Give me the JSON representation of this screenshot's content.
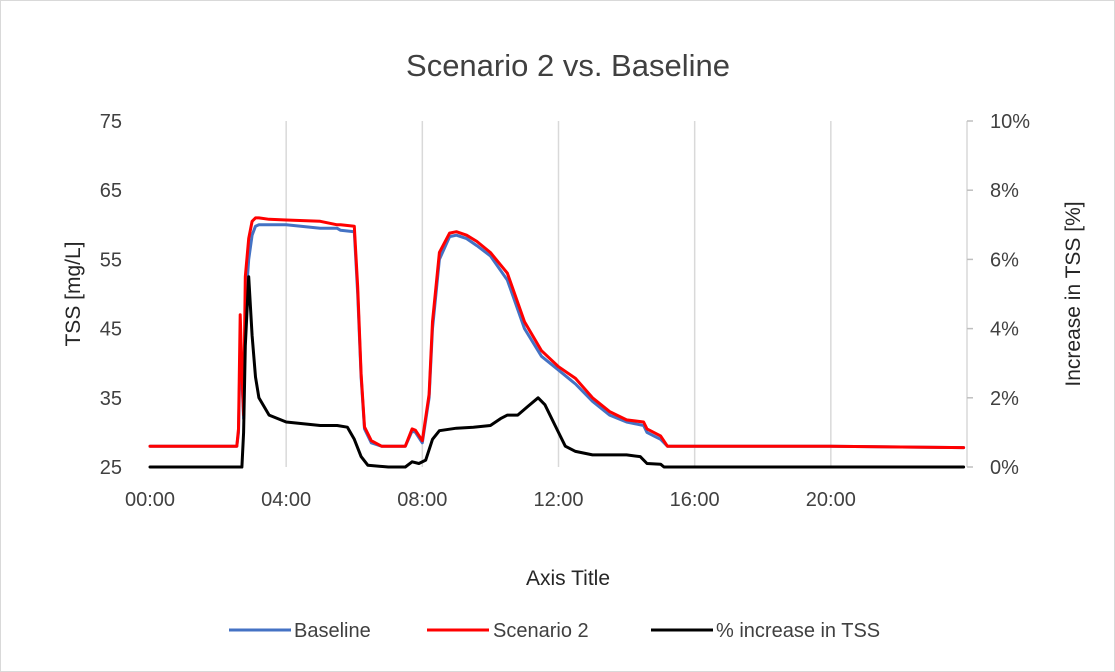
{
  "chart_data": {
    "type": "line",
    "title": "Scenario 2 vs. Baseline",
    "xlabel": "Axis Title",
    "ylabel": "TSS [mg/L]",
    "y2label": "Increase in TSS [%]",
    "x_unit": "hours",
    "xlim": [
      0,
      24
    ],
    "x_ticks": [
      0,
      4,
      8,
      12,
      16,
      20
    ],
    "x_tick_labels": [
      "00:00",
      "04:00",
      "08:00",
      "12:00",
      "16:00",
      "20:00"
    ],
    "ylim": [
      25,
      75
    ],
    "y_ticks": [
      25,
      35,
      45,
      55,
      65,
      75
    ],
    "y_tick_labels": [
      "25",
      "35",
      "45",
      "55",
      "65",
      "75"
    ],
    "y2lim": [
      0,
      10
    ],
    "y2_ticks": [
      0,
      2,
      4,
      6,
      8,
      10
    ],
    "y2_tick_labels": [
      "0%",
      "2%",
      "4%",
      "6%",
      "8%",
      "10%"
    ],
    "grid": "vertical",
    "legend_position": "bottom",
    "series": [
      {
        "name": "Baseline",
        "axis": "left",
        "color": "#4472c4",
        "x": [
          0,
          2.55,
          2.6,
          2.65,
          2.7,
          2.75,
          2.8,
          2.9,
          3.0,
          3.1,
          3.2,
          3.5,
          4.0,
          5.0,
          5.5,
          5.6,
          6.0,
          6.1,
          6.2,
          6.3,
          6.5,
          6.8,
          7.2,
          7.5,
          7.7,
          7.8,
          8.0,
          8.2,
          8.3,
          8.5,
          8.8,
          9.0,
          9.3,
          9.6,
          10.0,
          10.5,
          11.0,
          11.5,
          12.0,
          12.5,
          13.0,
          13.5,
          14.0,
          14.5,
          14.6,
          14.8,
          15.0,
          15.2,
          16.0,
          20.0,
          23.9
        ],
        "y": [
          28.0,
          28.0,
          30.0,
          42.0,
          38.0,
          32.0,
          48.0,
          55.0,
          58.5,
          59.8,
          60.0,
          60.0,
          60.0,
          59.5,
          59.5,
          59.2,
          59.0,
          50.0,
          38.0,
          30.5,
          28.5,
          28.0,
          28.0,
          28.0,
          30.2,
          30.0,
          28.5,
          35.0,
          45.0,
          55.0,
          58.3,
          58.5,
          58.0,
          57.0,
          55.5,
          52.0,
          45.0,
          41.0,
          39.0,
          37.0,
          34.5,
          32.5,
          31.5,
          31.0,
          30.0,
          29.5,
          29.0,
          28.0,
          28.0,
          28.0,
          27.8
        ]
      },
      {
        "name": "Scenario 2",
        "axis": "left",
        "color": "#ff0000",
        "x": [
          0,
          2.55,
          2.6,
          2.65,
          2.7,
          2.75,
          2.8,
          2.9,
          3.0,
          3.1,
          3.2,
          3.5,
          4.0,
          5.0,
          5.5,
          5.6,
          6.0,
          6.1,
          6.2,
          6.3,
          6.5,
          6.8,
          7.2,
          7.5,
          7.7,
          7.8,
          8.0,
          8.2,
          8.3,
          8.5,
          8.8,
          9.0,
          9.3,
          9.6,
          10.0,
          10.5,
          11.0,
          11.5,
          12.0,
          12.5,
          13.0,
          13.5,
          14.0,
          14.5,
          14.6,
          14.8,
          15.0,
          15.2,
          16.0,
          20.0,
          23.9
        ],
        "y": [
          28.0,
          28.0,
          30.5,
          47.0,
          39.0,
          32.5,
          52.5,
          58.0,
          60.5,
          61.0,
          61.0,
          60.8,
          60.7,
          60.5,
          60.0,
          60.0,
          59.8,
          51.0,
          38.5,
          30.8,
          28.8,
          28.0,
          28.0,
          28.0,
          30.5,
          30.3,
          28.8,
          35.5,
          46.0,
          56.0,
          58.8,
          59.0,
          58.5,
          57.6,
          56.0,
          53.0,
          46.0,
          41.8,
          39.5,
          37.8,
          35.0,
          33.0,
          31.8,
          31.5,
          30.5,
          30.0,
          29.5,
          28.0,
          28.0,
          28.0,
          27.8
        ]
      },
      {
        "name": "% increase in TSS",
        "axis": "right",
        "color": "#000000",
        "x": [
          0,
          2.7,
          2.75,
          2.8,
          2.9,
          3.0,
          3.1,
          3.2,
          3.5,
          4.0,
          5.0,
          5.5,
          5.8,
          6.0,
          6.2,
          6.4,
          7.0,
          7.5,
          7.7,
          7.9,
          8.1,
          8.3,
          8.5,
          9.0,
          9.5,
          10.0,
          10.3,
          10.5,
          10.8,
          11.1,
          11.4,
          11.6,
          11.9,
          12.2,
          12.5,
          13.0,
          14.0,
          14.4,
          14.6,
          15.0,
          15.1,
          16.0,
          20.0,
          23.9
        ],
        "y": [
          0.0,
          0.0,
          1.0,
          3.5,
          5.5,
          3.8,
          2.6,
          2.0,
          1.5,
          1.3,
          1.2,
          1.2,
          1.15,
          0.8,
          0.3,
          0.05,
          0.0,
          0.0,
          0.15,
          0.1,
          0.2,
          0.8,
          1.05,
          1.12,
          1.15,
          1.2,
          1.4,
          1.5,
          1.5,
          1.75,
          2.0,
          1.8,
          1.2,
          0.6,
          0.45,
          0.35,
          0.35,
          0.3,
          0.1,
          0.08,
          0.0,
          0.0,
          0.0,
          0.0
        ]
      }
    ]
  }
}
